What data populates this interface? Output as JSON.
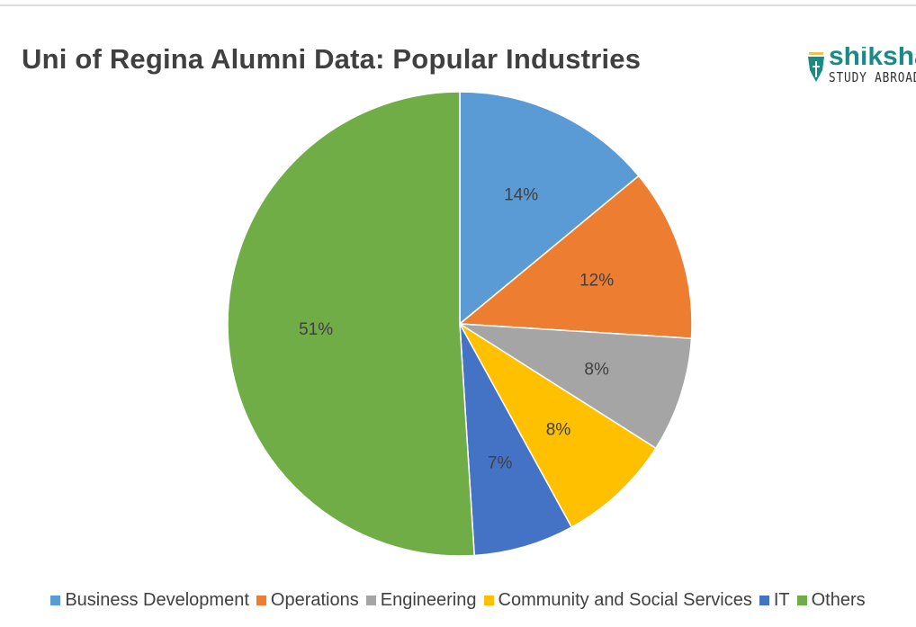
{
  "chart_data": {
    "type": "pie",
    "title": "Uni of Regina Alumni Data: Popular Industries",
    "start_angle": "12 o'clock",
    "direction": "clockwise",
    "legend_position": "bottom",
    "slices": [
      {
        "label": "Business Development",
        "value": 14,
        "data_label": "14%",
        "color": "#5b9bd5"
      },
      {
        "label": "Operations",
        "value": 12,
        "data_label": "12%",
        "color": "#ed7d31"
      },
      {
        "label": "Engineering",
        "value": 8,
        "data_label": "8%",
        "color": "#a5a5a5"
      },
      {
        "label": "Community and Social Services",
        "value": 8,
        "data_label": "8%",
        "color": "#ffc000"
      },
      {
        "label": "IT",
        "value": 7,
        "data_label": "7%",
        "color": "#4472c4"
      },
      {
        "label": "Others",
        "value": 51,
        "data_label": "51%",
        "color": "#70ad47"
      }
    ]
  },
  "logo": {
    "line1": "shiksha",
    "line2": "STUDY ABROAD",
    "color": "#1a8a86"
  }
}
